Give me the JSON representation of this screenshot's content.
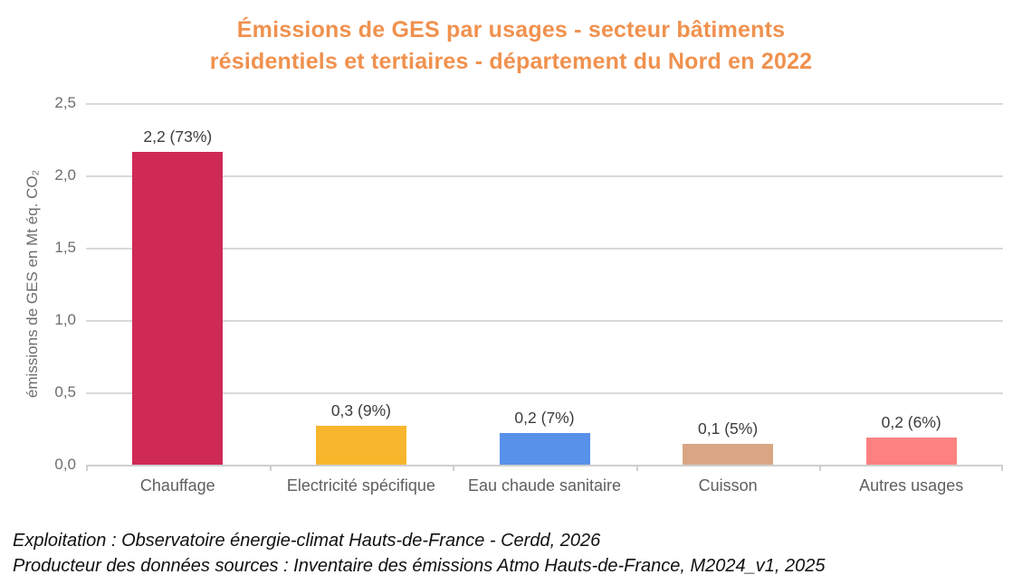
{
  "page": {
    "title_line1": "Émissions de GES par usages - secteur bâtiments",
    "title_line2": "résidentiels et tertiaires - département du Nord en 2022",
    "title_color": "#F0914E",
    "footer_line1": "Exploitation : Observatoire énergie-climat Hauts-de-France - Cerdd, 2026",
    "footer_line2": "Producteur des données sources : Inventaire des émissions Atmo Hauts-de-France, M2024_v1, 2025"
  },
  "chart_data": {
    "type": "bar",
    "title": "Émissions de GES par usages - secteur bâtiments résidentiels et tertiaires - département du Nord en 2022",
    "xlabel": "",
    "ylabel": "émissions de GES en Mt éq. CO₂",
    "ylim": [
      0,
      2.5
    ],
    "grid": true,
    "legend": "none",
    "yticks": {
      "values": [
        0,
        0.5,
        1.0,
        1.5,
        2.0,
        2.5
      ],
      "labels": [
        "0,0",
        "0,5",
        "1,0",
        "1,5",
        "2,0",
        "2,5"
      ]
    },
    "categories": [
      "Chauffage",
      "Electricité spécifique",
      "Eau chaude sanitaire",
      "Cuisson",
      "Autres usages"
    ],
    "values": [
      2.2,
      0.3,
      0.2,
      0.1,
      0.2
    ],
    "percentages": [
      73,
      9,
      7,
      5,
      6
    ],
    "bar_labels": [
      "2,2 (73%)",
      "0,3 (9%)",
      "0,2 (7%)",
      "0,1 (5%)",
      "0,2 (6%)"
    ],
    "values_estimated_from_bars": [
      2.16,
      0.27,
      0.22,
      0.145,
      0.19
    ],
    "bar_colors": [
      "#CE2A55",
      "#F8B62D",
      "#5891EA",
      "#D9A685",
      "#FD8181"
    ],
    "grid_color": "#d9d9d9",
    "axis_color": "#cfcfcf"
  }
}
